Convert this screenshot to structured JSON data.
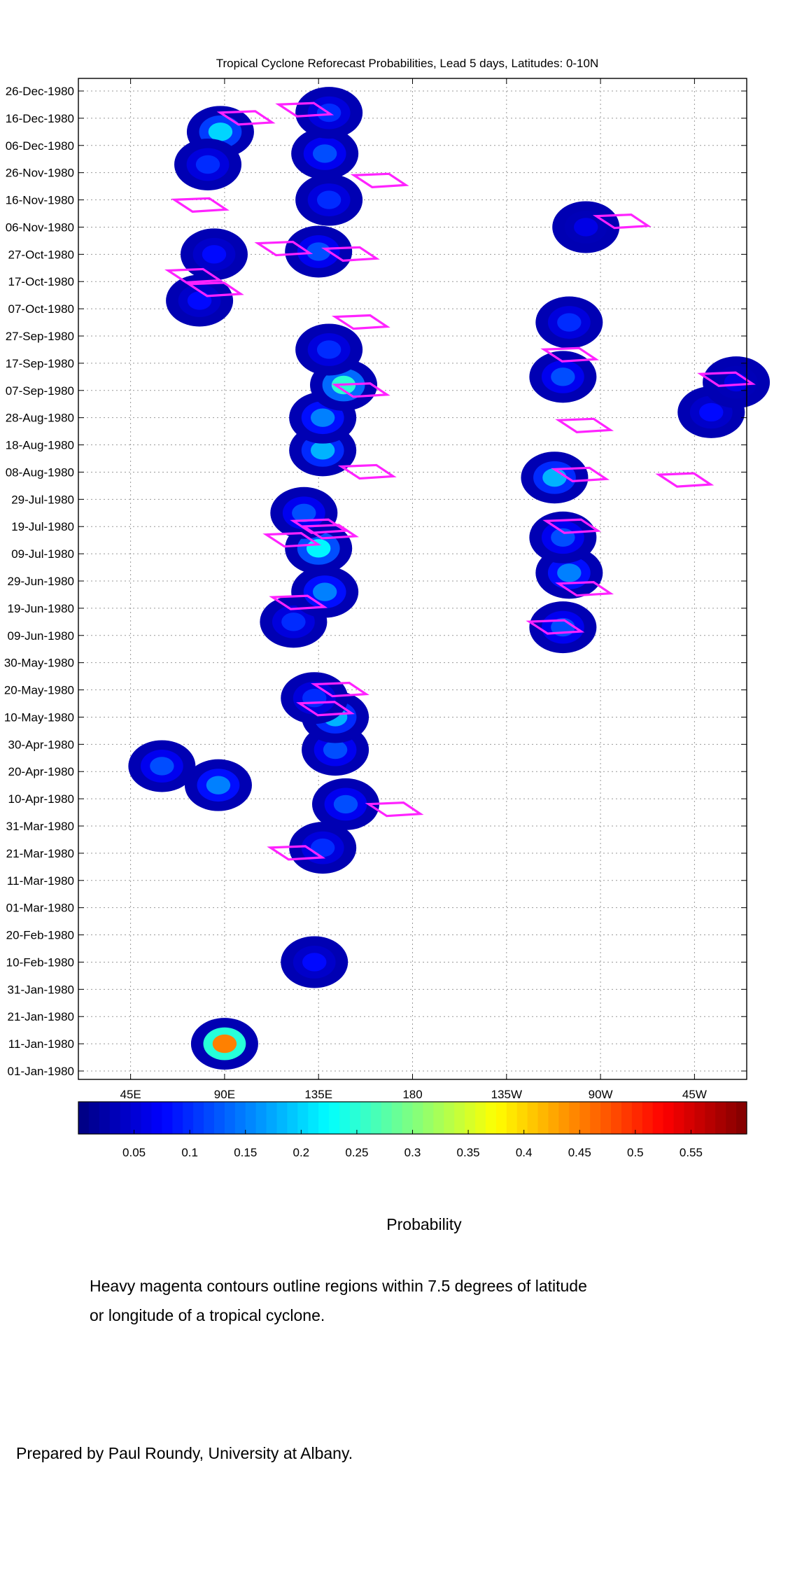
{
  "chart_data": {
    "type": "heatmap",
    "title": "Tropical Cyclone Reforecast Probabilities, Lead 5 days, Latitudes: 0-10N",
    "xlabel": "",
    "ylabel": "",
    "x_range_deg_east": [
      20,
      340
    ],
    "x_ticks": [
      {
        "lon": 45,
        "label": "45E"
      },
      {
        "lon": 90,
        "label": "90E"
      },
      {
        "lon": 135,
        "label": "135E"
      },
      {
        "lon": 180,
        "label": "180"
      },
      {
        "lon": 225,
        "label": "135W"
      },
      {
        "lon": 270,
        "label": "90W"
      },
      {
        "lon": 315,
        "label": "45W"
      }
    ],
    "y_range_days_from_01_Jan_1980": [
      0,
      360
    ],
    "y_ticks": [
      {
        "day": 0,
        "label": "01-Jan-1980"
      },
      {
        "day": 10,
        "label": "11-Jan-1980"
      },
      {
        "day": 20,
        "label": "21-Jan-1980"
      },
      {
        "day": 30,
        "label": "31-Jan-1980"
      },
      {
        "day": 40,
        "label": "10-Feb-1980"
      },
      {
        "day": 50,
        "label": "20-Feb-1980"
      },
      {
        "day": 60,
        "label": "01-Mar-1980"
      },
      {
        "day": 70,
        "label": "11-Mar-1980"
      },
      {
        "day": 80,
        "label": "21-Mar-1980"
      },
      {
        "day": 90,
        "label": "31-Mar-1980"
      },
      {
        "day": 100,
        "label": "10-Apr-1980"
      },
      {
        "day": 110,
        "label": "20-Apr-1980"
      },
      {
        "day": 120,
        "label": "30-Apr-1980"
      },
      {
        "day": 130,
        "label": "10-May-1980"
      },
      {
        "day": 140,
        "label": "20-May-1980"
      },
      {
        "day": 150,
        "label": "30-May-1980"
      },
      {
        "day": 160,
        "label": "09-Jun-1980"
      },
      {
        "day": 170,
        "label": "19-Jun-1980"
      },
      {
        "day": 180,
        "label": "29-Jun-1980"
      },
      {
        "day": 190,
        "label": "09-Jul-1980"
      },
      {
        "day": 200,
        "label": "19-Jul-1980"
      },
      {
        "day": 210,
        "label": "29-Jul-1980"
      },
      {
        "day": 220,
        "label": "08-Aug-1980"
      },
      {
        "day": 230,
        "label": "18-Aug-1980"
      },
      {
        "day": 240,
        "label": "28-Aug-1980"
      },
      {
        "day": 250,
        "label": "07-Sep-1980"
      },
      {
        "day": 260,
        "label": "17-Sep-1980"
      },
      {
        "day": 270,
        "label": "27-Sep-1980"
      },
      {
        "day": 280,
        "label": "07-Oct-1980"
      },
      {
        "day": 290,
        "label": "17-Oct-1980"
      },
      {
        "day": 300,
        "label": "27-Oct-1980"
      },
      {
        "day": 310,
        "label": "06-Nov-1980"
      },
      {
        "day": 320,
        "label": "16-Nov-1980"
      },
      {
        "day": 330,
        "label": "26-Nov-1980"
      },
      {
        "day": 340,
        "label": "06-Dec-1980"
      },
      {
        "day": 350,
        "label": "16-Dec-1980"
      },
      {
        "day": 360,
        "label": "26-Dec-1980"
      }
    ],
    "grid": true,
    "probability_blobs": [
      {
        "lon": 90,
        "day": 10,
        "p": 0.45
      },
      {
        "lon": 133,
        "day": 40,
        "p": 0.08
      },
      {
        "lon": 87,
        "day": 105,
        "p": 0.15
      },
      {
        "lon": 60,
        "day": 112,
        "p": 0.12
      },
      {
        "lon": 137,
        "day": 82,
        "p": 0.1
      },
      {
        "lon": 148,
        "day": 98,
        "p": 0.12
      },
      {
        "lon": 143,
        "day": 118,
        "p": 0.12
      },
      {
        "lon": 143,
        "day": 130,
        "p": 0.18
      },
      {
        "lon": 133,
        "day": 137,
        "p": 0.1
      },
      {
        "lon": 123,
        "day": 165,
        "p": 0.1
      },
      {
        "lon": 138,
        "day": 176,
        "p": 0.15
      },
      {
        "lon": 135,
        "day": 192,
        "p": 0.22
      },
      {
        "lon": 128,
        "day": 205,
        "p": 0.12
      },
      {
        "lon": 137,
        "day": 228,
        "p": 0.18
      },
      {
        "lon": 137,
        "day": 240,
        "p": 0.15
      },
      {
        "lon": 147,
        "day": 252,
        "p": 0.25
      },
      {
        "lon": 140,
        "day": 265,
        "p": 0.1
      },
      {
        "lon": 135,
        "day": 301,
        "p": 0.12
      },
      {
        "lon": 140,
        "day": 320,
        "p": 0.1
      },
      {
        "lon": 138,
        "day": 337,
        "p": 0.12
      },
      {
        "lon": 140,
        "day": 352,
        "p": 0.1
      },
      {
        "lon": 88,
        "day": 345,
        "p": 0.2
      },
      {
        "lon": 82,
        "day": 333,
        "p": 0.1
      },
      {
        "lon": 85,
        "day": 300,
        "p": 0.08
      },
      {
        "lon": 78,
        "day": 283,
        "p": 0.08
      },
      {
        "lon": 252,
        "day": 163,
        "p": 0.12
      },
      {
        "lon": 255,
        "day": 183,
        "p": 0.15
      },
      {
        "lon": 252,
        "day": 196,
        "p": 0.12
      },
      {
        "lon": 248,
        "day": 218,
        "p": 0.18
      },
      {
        "lon": 252,
        "day": 255,
        "p": 0.12
      },
      {
        "lon": 255,
        "day": 275,
        "p": 0.1
      },
      {
        "lon": 263,
        "day": 310,
        "p": 0.06
      },
      {
        "lon": 323,
        "day": 242,
        "p": 0.08
      },
      {
        "lon": 335,
        "day": 253,
        "p": 0.06
      }
    ],
    "tc_contours": [
      {
        "lon": 100,
        "day": 350
      },
      {
        "lon": 128,
        "day": 353
      },
      {
        "lon": 164,
        "day": 327
      },
      {
        "lon": 78,
        "day": 318
      },
      {
        "lon": 118,
        "day": 302
      },
      {
        "lon": 150,
        "day": 300
      },
      {
        "lon": 75,
        "day": 292
      },
      {
        "lon": 85,
        "day": 287
      },
      {
        "lon": 155,
        "day": 275
      },
      {
        "lon": 155,
        "day": 250
      },
      {
        "lon": 158,
        "day": 220
      },
      {
        "lon": 135,
        "day": 200
      },
      {
        "lon": 140,
        "day": 198
      },
      {
        "lon": 122,
        "day": 195
      },
      {
        "lon": 125,
        "day": 172
      },
      {
        "lon": 145,
        "day": 140
      },
      {
        "lon": 138,
        "day": 133
      },
      {
        "lon": 171,
        "day": 96
      },
      {
        "lon": 124,
        "day": 80
      },
      {
        "lon": 255,
        "day": 263
      },
      {
        "lon": 262,
        "day": 237
      },
      {
        "lon": 260,
        "day": 219
      },
      {
        "lon": 256,
        "day": 200
      },
      {
        "lon": 262,
        "day": 177
      },
      {
        "lon": 248,
        "day": 163
      },
      {
        "lon": 330,
        "day": 254
      },
      {
        "lon": 310,
        "day": 217
      },
      {
        "lon": 280,
        "day": 312
      }
    ],
    "colorbar": {
      "range": [
        0,
        0.6
      ],
      "ticks": [
        "0.05",
        "0.1",
        "0.15",
        "0.2",
        "0.25",
        "0.3",
        "0.35",
        "0.4",
        "0.45",
        "0.5",
        "0.55"
      ],
      "label": "Probability",
      "colormap": "jet"
    },
    "contour_color": "#ff22ff"
  },
  "notes": {
    "line1": "Heavy magenta contours outline regions within 7.5 degrees of latitude",
    "line2": "or longitude of a tropical cyclone.",
    "credit": "Prepared by Paul Roundy, University at Albany."
  }
}
